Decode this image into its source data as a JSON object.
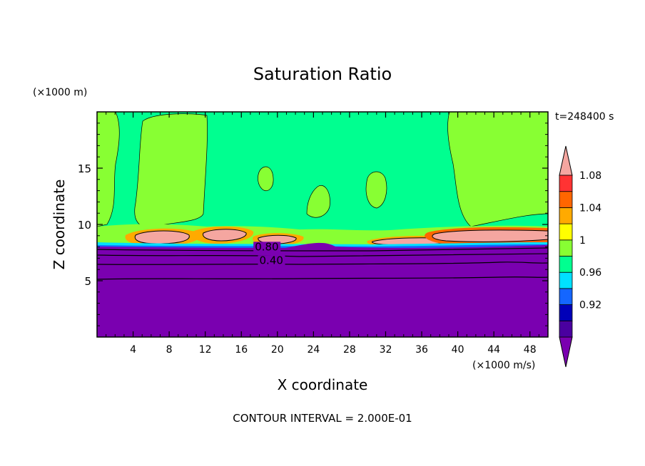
{
  "chart_data": {
    "type": "heatmap",
    "title": "Saturation Ratio",
    "xlabel": "X coordinate",
    "ylabel": "Z coordinate",
    "x_unit": "(×1000 m/s)",
    "y_unit": "(×1000 m)",
    "time_label": "t=248400 s",
    "footer": "CONTOUR INTERVAL = 2.000E-01",
    "xlim": [
      0,
      50
    ],
    "ylim": [
      0,
      20
    ],
    "x_ticks": [
      4,
      8,
      12,
      16,
      20,
      24,
      28,
      32,
      36,
      40,
      44,
      48
    ],
    "y_ticks": [
      5,
      10,
      15
    ],
    "grid": false,
    "contour_labels": [
      {
        "text": "0.80",
        "x": 17.5,
        "y": 7.7
      },
      {
        "text": "0.40",
        "x": 18.0,
        "y": 6.5
      }
    ],
    "colorbar": {
      "labels": [
        "0.92",
        "0.96",
        "1",
        "1.04",
        "1.08"
      ],
      "bins": [
        {
          "color": "#7a00b0"
        },
        {
          "color": "#4a00a0"
        },
        {
          "color": "#0000b8"
        },
        {
          "color": "#1466ff"
        },
        {
          "color": "#00e0ff"
        },
        {
          "color": "#00ff90"
        },
        {
          "color": "#88ff33"
        },
        {
          "color": "#ffff00"
        },
        {
          "color": "#ffaa00"
        },
        {
          "color": "#ff6600"
        },
        {
          "color": "#ff3333"
        },
        {
          "color": "#f5a6a0"
        }
      ]
    }
  }
}
